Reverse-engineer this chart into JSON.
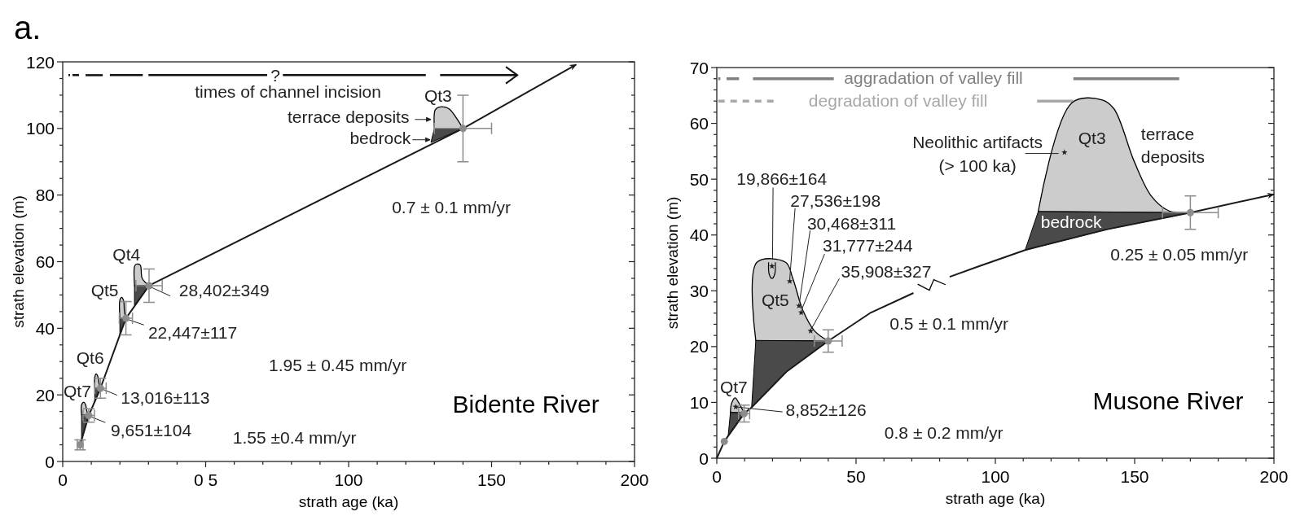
{
  "chart_data": [
    {
      "type": "scatter",
      "title": "Bidente River",
      "xlabel": "strath age (ka)",
      "ylabel": "strath elevation (m)",
      "xlim": [
        0,
        200
      ],
      "ylim": [
        0,
        120
      ],
      "xticks": [
        0,
        {
          "value": 10,
          "label": null
        },
        {
          "value": 20,
          "label": null
        },
        {
          "value": 30,
          "label": null
        },
        {
          "value": 40,
          "label": null
        },
        {
          "value": 50,
          "label": "0 5"
        },
        {
          "value": 60,
          "label": null
        },
        {
          "value": 70,
          "label": null
        },
        {
          "value": 80,
          "label": null
        },
        {
          "value": 90,
          "label": null
        },
        100,
        {
          "value": 110,
          "label": null
        },
        {
          "value": 120,
          "label": null
        },
        {
          "value": 130,
          "label": null
        },
        {
          "value": 140,
          "label": null
        },
        150,
        {
          "value": 160,
          "label": null
        },
        {
          "value": 170,
          "label": null
        },
        {
          "value": 180,
          "label": null
        },
        {
          "value": 190,
          "label": null
        },
        200
      ],
      "yticks": [
        0,
        {
          "value": 5,
          "label": null
        },
        {
          "value": 10,
          "label": null
        },
        {
          "value": 15,
          "label": null
        },
        20,
        {
          "value": 25,
          "label": null
        },
        {
          "value": 30,
          "label": null
        },
        {
          "value": 35,
          "label": null
        },
        40,
        {
          "value": 45,
          "label": null
        },
        {
          "value": 50,
          "label": null
        },
        {
          "value": 55,
          "label": null
        },
        60,
        {
          "value": 65,
          "label": null
        },
        {
          "value": 70,
          "label": null
        },
        {
          "value": 75,
          "label": null
        },
        80,
        {
          "value": 85,
          "label": null
        },
        {
          "value": 90,
          "label": null
        },
        {
          "value": 95,
          "label": null
        },
        100,
        {
          "value": 105,
          "label": null
        },
        {
          "value": 110,
          "label": null
        },
        {
          "value": 115,
          "label": null
        },
        120
      ],
      "series": [
        {
          "type": "line",
          "color": "#1a1a1a",
          "x": [
            6.1,
            9.1,
            13.2,
            22.1,
            30.2,
            140,
            179.6
          ],
          "values": [
            5,
            13.8,
            22,
            43,
            52.8,
            100,
            119.2
          ]
        },
        {
          "type": "scatter",
          "color": "#8c8c8c",
          "x": [
            6.1,
            9.1,
            13.2,
            22.1,
            30.2,
            140
          ],
          "values": [
            5,
            13.8,
            22,
            43,
            52.8,
            100
          ],
          "errors": [
            1.5,
            2,
            3,
            5,
            5,
            10
          ],
          "xerrors": [
            1,
            2,
            2,
            2.3,
            4.6,
            10
          ]
        }
      ],
      "annotations": [
        "a.",
        "?",
        "times of channel incision",
        "Qt3",
        "terrace deposits",
        "bedrock",
        "0.7 ± 0.1 mm/yr",
        "28,402±349",
        "22,447±117",
        "13,016±113",
        "9,651±104",
        "Qt4",
        "Qt5",
        "Qt6",
        "Qt7",
        "1.95 ± 0.45 mm/yr",
        "1.55 ±0.4 mm/yr"
      ]
    },
    {
      "type": "scatter",
      "title": "Musone River",
      "xlabel": "strath age (ka)",
      "ylabel": "strath elevation (m)",
      "xlim": [
        0,
        200
      ],
      "ylim": [
        0,
        70
      ],
      "xticks": [
        0,
        {
          "value": 10,
          "label": null
        },
        {
          "value": 20,
          "label": null
        },
        {
          "value": 30,
          "label": null
        },
        {
          "value": 40,
          "label": null
        },
        50,
        {
          "value": 60,
          "label": null
        },
        {
          "value": 70,
          "label": null
        },
        {
          "value": 80,
          "label": null
        },
        {
          "value": 90,
          "label": null
        },
        100,
        {
          "value": 110,
          "label": null
        },
        {
          "value": 120,
          "label": null
        },
        {
          "value": 130,
          "label": null
        },
        {
          "value": 140,
          "label": null
        },
        150,
        {
          "value": 160,
          "label": null
        },
        {
          "value": 170,
          "label": null
        },
        {
          "value": 180,
          "label": null
        },
        {
          "value": 190,
          "label": null
        },
        200
      ],
      "yticks": [
        0,
        {
          "value": 2,
          "label": null
        },
        {
          "value": 4,
          "label": null
        },
        {
          "value": 6,
          "label": null
        },
        {
          "value": 8,
          "label": null
        },
        10,
        {
          "value": 12,
          "label": null
        },
        {
          "value": 14,
          "label": null
        },
        {
          "value": 16,
          "label": null
        },
        {
          "value": 18,
          "label": null
        },
        20,
        {
          "value": 22,
          "label": null
        },
        {
          "value": 24,
          "label": null
        },
        {
          "value": 26,
          "label": null
        },
        {
          "value": 28,
          "label": null
        },
        30,
        {
          "value": 32,
          "label": null
        },
        {
          "value": 34,
          "label": null
        },
        {
          "value": 36,
          "label": null
        },
        {
          "value": 38,
          "label": null
        },
        40,
        {
          "value": 42,
          "label": null
        },
        {
          "value": 44,
          "label": null
        },
        {
          "value": 46,
          "label": null
        },
        {
          "value": 48,
          "label": null
        },
        50,
        {
          "value": 52,
          "label": null
        },
        {
          "value": 54,
          "label": null
        },
        {
          "value": 56,
          "label": null
        },
        {
          "value": 58,
          "label": null
        },
        60,
        {
          "value": 62,
          "label": null
        },
        {
          "value": 64,
          "label": null
        },
        {
          "value": 66,
          "label": null
        },
        {
          "value": 68,
          "label": null
        },
        70
      ],
      "series": [
        {
          "type": "line",
          "color": "#1a1a1a",
          "x": [
            0,
            2.7,
            9.8,
            12.5,
            25,
            40,
            55,
            70.6,
            77,
            83.6,
            93.6,
            110.7,
            140,
            170,
            200
          ],
          "values": [
            0,
            3,
            8,
            9.1,
            15.5,
            21,
            26,
            29.6,
            null,
            32.5,
            34.3,
            37.3,
            41,
            44,
            47.3
          ]
        },
        {
          "type": "scatter",
          "color": "#8c8c8c",
          "x": [
            2.7,
            9.8,
            40,
            170
          ],
          "values": [
            3,
            8,
            21,
            44
          ],
          "errors": [
            null,
            1.5,
            2,
            3
          ],
          "xerrors": [
            null,
            2,
            5,
            10
          ]
        }
      ],
      "annotations": [
        "aggradation of valley fill",
        "degradation of valley fill",
        "Neolithic artifacts\n(> 100 ka)",
        "Qt3",
        "terrace\ndeposits",
        "bedrock",
        "0.25 ± 0.05 mm/yr",
        "0.5 ± 0.1 mm/yr",
        "0.8 ± 0.2 mm/yr",
        "8,852±126",
        "Qt7",
        "Qt5",
        "19,866±164",
        "27,536±198",
        "30,468±311",
        "31,777±244",
        "35,908±327"
      ]
    }
  ]
}
